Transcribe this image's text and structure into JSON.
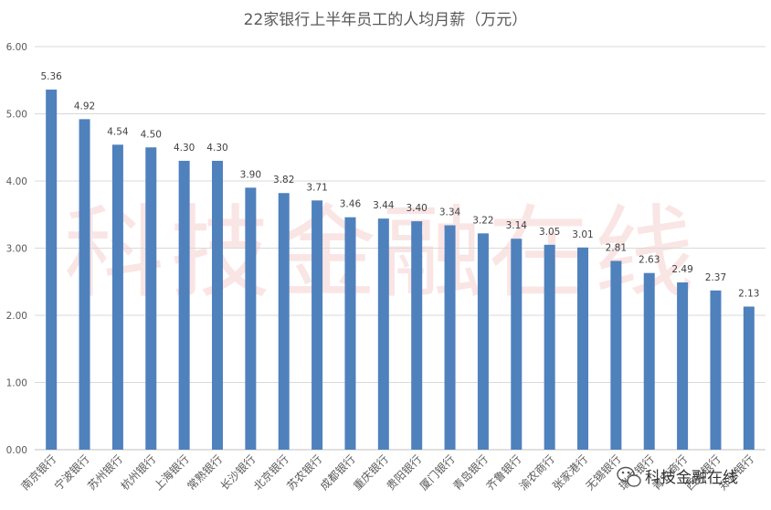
{
  "chart_data": {
    "type": "bar",
    "title": "22家银行上半年员工的人均月薪（万元）",
    "xlabel": "",
    "ylabel": "",
    "ylim": [
      0,
      6
    ],
    "yticks": [
      "0.00",
      "1.00",
      "2.00",
      "3.00",
      "4.00",
      "5.00",
      "6.00"
    ],
    "grid": true,
    "legend": "none",
    "bar_color": "#4f81bd",
    "categories": [
      "南京银行",
      "宁波银行",
      "苏州银行",
      "杭州银行",
      "上海银行",
      "常熟银行",
      "长沙银行",
      "北京银行",
      "苏农银行",
      "成都银行",
      "重庆银行",
      "贵阳银行",
      "厦门银行",
      "青岛银行",
      "齐鲁银行",
      "渝农商行",
      "张家港行",
      "无锡银行",
      "瑞丰银行",
      "青农商行",
      "西安银行",
      "郑州银行"
    ],
    "values": [
      5.36,
      4.92,
      4.54,
      4.5,
      4.3,
      4.3,
      3.9,
      3.82,
      3.71,
      3.46,
      3.44,
      3.4,
      3.34,
      3.22,
      3.14,
      3.05,
      3.01,
      2.81,
      2.63,
      2.49,
      2.37,
      2.13
    ],
    "value_labels": [
      "5.36",
      "4.92",
      "4.54",
      "4.50",
      "4.30",
      "4.30",
      "3.90",
      "3.82",
      "3.71",
      "3.46",
      "3.44",
      "3.40",
      "3.34",
      "3.22",
      "3.14",
      "3.05",
      "3.01",
      "2.81",
      "2.63",
      "2.49",
      "2.37",
      "2.13"
    ]
  },
  "watermark": {
    "text": "科技金融在线",
    "color": "#e88a8a"
  },
  "logo": {
    "text": "科技金融在线",
    "icon": "wechat-icon"
  }
}
